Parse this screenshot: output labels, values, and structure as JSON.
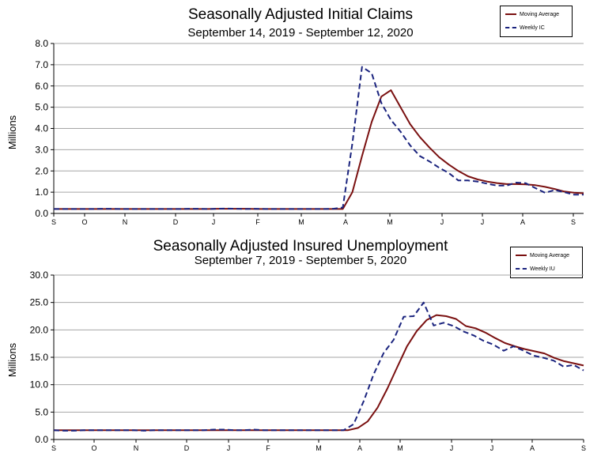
{
  "colors": {
    "moving_average": "#7a1010",
    "weekly": "#1a237e",
    "grid": "#a6a6a6"
  },
  "chart_data": [
    {
      "type": "line",
      "title": "Seasonally Adjusted Initial Claims",
      "subtitle": "September 14, 2019 - September 12, 2020",
      "ylabel": "Millions",
      "xlabel": "",
      "ylim": [
        0,
        8
      ],
      "yticks": [
        "0.0",
        "1.0",
        "2.0",
        "3.0",
        "4.0",
        "5.0",
        "6.0",
        "7.0",
        "8.0"
      ],
      "month_ticks": [
        "S",
        "O",
        "N",
        "D",
        "J",
        "F",
        "M",
        "A",
        "M",
        "J",
        "J",
        "A",
        "S"
      ],
      "grid": true,
      "legend_position": "top-right",
      "series": [
        {
          "name": "Moving Average",
          "style": "solid",
          "values": [
            0.21,
            0.21,
            0.21,
            0.21,
            0.21,
            0.21,
            0.21,
            0.21,
            0.21,
            0.21,
            0.21,
            0.21,
            0.21,
            0.21,
            0.21,
            0.21,
            0.21,
            0.22,
            0.22,
            0.22,
            0.22,
            0.21,
            0.21,
            0.21,
            0.21,
            0.21,
            0.21,
            0.21,
            0.21,
            0.21,
            0.21,
            1.0,
            2.7,
            4.3,
            5.5,
            5.8,
            5.0,
            4.2,
            3.6,
            3.1,
            2.65,
            2.3,
            2.0,
            1.75,
            1.6,
            1.5,
            1.43,
            1.38,
            1.38,
            1.37,
            1.33,
            1.25,
            1.15,
            1.03,
            0.98,
            0.95
          ]
        },
        {
          "name": "Weekly IC",
          "style": "dashed",
          "values": [
            0.21,
            0.21,
            0.21,
            0.21,
            0.21,
            0.22,
            0.22,
            0.21,
            0.21,
            0.21,
            0.21,
            0.21,
            0.21,
            0.21,
            0.22,
            0.22,
            0.21,
            0.22,
            0.23,
            0.22,
            0.21,
            0.22,
            0.21,
            0.21,
            0.21,
            0.21,
            0.21,
            0.21,
            0.21,
            0.22,
            0.28,
            3.3,
            6.9,
            6.6,
            5.2,
            4.4,
            3.85,
            3.2,
            2.7,
            2.45,
            2.15,
            1.9,
            1.55,
            1.55,
            1.5,
            1.4,
            1.31,
            1.31,
            1.45,
            1.42,
            1.19,
            0.97,
            1.1,
            1.0,
            0.88,
            0.88
          ]
        }
      ]
    },
    {
      "type": "line",
      "title": "Seasonally Adjusted Insured Unemployment",
      "subtitle": "September 7, 2019 - September 5, 2020",
      "ylabel": "Millions",
      "xlabel": "",
      "ylim": [
        0,
        30
      ],
      "yticks": [
        "0.0",
        "5.0",
        "10.0",
        "15.0",
        "20.0",
        "25.0",
        "30.0"
      ],
      "month_ticks": [
        "S",
        "O",
        "N",
        "D",
        "J",
        "F",
        "M",
        "A",
        "M",
        "J",
        "J",
        "A",
        "S"
      ],
      "grid": true,
      "legend_position": "top-right",
      "series": [
        {
          "name": "Moving Average",
          "style": "solid",
          "values": [
            1.7,
            1.7,
            1.7,
            1.7,
            1.7,
            1.7,
            1.7,
            1.7,
            1.7,
            1.7,
            1.7,
            1.7,
            1.7,
            1.7,
            1.7,
            1.7,
            1.7,
            1.7,
            1.7,
            1.7,
            1.7,
            1.7,
            1.7,
            1.7,
            1.7,
            1.7,
            1.7,
            1.7,
            1.7,
            1.7,
            1.7,
            2.1,
            3.3,
            5.8,
            9.3,
            13.2,
            17.0,
            19.8,
            21.8,
            22.7,
            22.5,
            22.0,
            20.7,
            20.3,
            19.5,
            18.5,
            17.6,
            17.0,
            16.5,
            16.1,
            15.7,
            14.9,
            14.3,
            13.9,
            13.5
          ]
        },
        {
          "name": "Weekly IU",
          "style": "dashed",
          "values": [
            1.7,
            1.6,
            1.6,
            1.7,
            1.7,
            1.7,
            1.7,
            1.7,
            1.7,
            1.6,
            1.7,
            1.7,
            1.7,
            1.7,
            1.7,
            1.7,
            1.8,
            1.8,
            1.7,
            1.7,
            1.8,
            1.7,
            1.7,
            1.7,
            1.7,
            1.7,
            1.7,
            1.7,
            1.7,
            1.7,
            2.8,
            7.0,
            11.9,
            15.8,
            18.2,
            22.4,
            22.5,
            25.0,
            20.8,
            21.3,
            20.7,
            19.7,
            19.0,
            18.0,
            17.3,
            16.2,
            17.0,
            16.2,
            15.3,
            14.9,
            14.4,
            13.3,
            13.6,
            12.6
          ]
        }
      ]
    }
  ]
}
